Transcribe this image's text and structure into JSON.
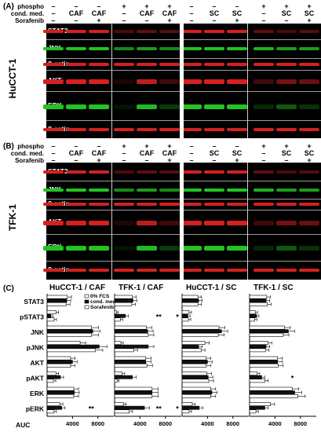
{
  "panels": {
    "A": {
      "letter": "(A)",
      "cell_line": "HuCCT-1"
    },
    "B": {
      "letter": "(B)",
      "cell_line": "TFK-1"
    },
    "C": {
      "letter": "(C)"
    }
  },
  "header_labels": {
    "phospho": "phospho",
    "cond": "cond. med.",
    "sorafenib": "Sorafenib"
  },
  "header_A": {
    "phospho": [
      "–",
      "–",
      "–",
      "+",
      "+",
      "+",
      "–",
      "–",
      "–",
      "+",
      "+",
      "+"
    ],
    "cond": [
      "–",
      "CAF",
      "CAF",
      "–",
      "CAF",
      "CAF",
      "–",
      "SC",
      "SC",
      "–",
      "SC",
      "SC"
    ],
    "sorafenib": [
      "–",
      "–",
      "+",
      "–",
      "–",
      "+",
      "–",
      "–",
      "+",
      "–",
      "–",
      "+"
    ]
  },
  "header_B": {
    "phospho": [
      "–",
      "–",
      "–",
      "+",
      "+",
      "+",
      "–",
      "–",
      "–",
      "+",
      "+",
      "+"
    ],
    "cond": [
      "–",
      "CAF",
      "CAF",
      "–",
      "CAF",
      "CAF",
      "–",
      "SC",
      "SC",
      "–",
      "SC",
      "SC"
    ],
    "sorafenib": [
      "–",
      "–",
      "+",
      "–",
      "–",
      "+",
      "–",
      "–",
      "+",
      "–",
      "–",
      "+"
    ]
  },
  "blot_rows_A": [
    "STAT3",
    "JNK",
    "ß-actin",
    "AKT",
    "ERK",
    "ß-actin"
  ],
  "blot_rows_B": [
    "STAT3",
    "JNK",
    "ß-actin",
    "AKT",
    "ERK",
    "ß-actin"
  ],
  "colors": {
    "green": "#22c422",
    "red": "#d42020",
    "bar_dark": "#111111",
    "bar_light": "#ffffff"
  },
  "chart_data": [
    {
      "type": "bar",
      "title": "HuCCT-1 / CAF",
      "orientation": "horizontal",
      "categories": [
        "STAT3",
        "pSTAT3",
        "JNK",
        "pJNK",
        "AKT",
        "pAKT",
        "ERK",
        "pERK"
      ],
      "xlabel": "AUC",
      "xticks": [
        4000,
        8000
      ],
      "xlim": [
        0,
        10500
      ],
      "legend": {
        "position": "top-right",
        "entries": [
          "0% FCS",
          "cond. med.",
          "Sorafenib"
        ]
      },
      "series": [
        {
          "name": "0% FCS",
          "values": [
            3200,
            1400,
            7000,
            5200,
            3700,
            1400,
            4200,
            2000
          ]
        },
        {
          "name": "cond. med.",
          "values": [
            3100,
            600,
            7200,
            8200,
            4000,
            2100,
            4300,
            2300
          ]
        },
        {
          "name": "Sorafenib",
          "values": [
            3000,
            1100,
            7000,
            7600,
            3700,
            1000,
            4200,
            1100
          ]
        }
      ],
      "significance": [
        {
          "category": "pERK",
          "label": "**"
        }
      ]
    },
    {
      "type": "bar",
      "title": "TFK-1 / CAF",
      "orientation": "horizontal",
      "categories": [
        "STAT3",
        "pSTAT3",
        "JNK",
        "pJNK",
        "AKT",
        "pAKT",
        "ERK",
        "pERK"
      ],
      "xlabel": "",
      "xticks": [
        4000,
        8000
      ],
      "xlim": [
        0,
        10500
      ],
      "series": [
        {
          "name": "0% FCS",
          "values": [
            2800,
            300,
            5000,
            1000,
            4900,
            1200,
            5900,
            1400
          ]
        },
        {
          "name": "cond. med.",
          "values": [
            2900,
            1700,
            5200,
            5300,
            4900,
            2800,
            5900,
            4700
          ]
        },
        {
          "name": "Sorafenib",
          "values": [
            2700,
            900,
            5300,
            3000,
            5100,
            400,
            5900,
            2300
          ]
        }
      ],
      "significance": [
        {
          "category": "pSTAT3",
          "label": "**"
        },
        {
          "category": "pSTAT3",
          "label": "*"
        },
        {
          "category": "pERK",
          "label": "**"
        },
        {
          "category": "pERK",
          "label": "*"
        }
      ]
    },
    {
      "type": "bar",
      "title": "HuCCT-1 / SC",
      "orientation": "horizontal",
      "categories": [
        "STAT3",
        "pSTAT3",
        "JNK",
        "pJNK",
        "AKT",
        "pAKT",
        "ERK",
        "pERK"
      ],
      "xlabel": "",
      "xticks": [
        4000,
        8000
      ],
      "xlim": [
        0,
        10500
      ],
      "series": [
        {
          "name": "0% FCS",
          "values": [
            2500,
            1100,
            5800,
            3600,
            3800,
            3900,
            4500,
            1600
          ]
        },
        {
          "name": "cond. med.",
          "values": [
            2600,
            900,
            6200,
            2600,
            4000,
            4100,
            4700,
            2700
          ]
        },
        {
          "name": "Sorafenib",
          "values": [
            2500,
            1000,
            5700,
            3000,
            3800,
            4200,
            4500,
            1100
          ]
        }
      ]
    },
    {
      "type": "bar",
      "title": "TFK-1 / SC",
      "orientation": "horizontal",
      "categories": [
        "STAT3",
        "pSTAT3",
        "JNK",
        "pJNK",
        "AKT",
        "pAKT",
        "ERK",
        "pERK"
      ],
      "xlabel": "",
      "xticks": [
        4000,
        8000
      ],
      "xlim": [
        0,
        10500
      ],
      "series": [
        {
          "name": "0% FCS",
          "values": [
            2700,
            900,
            5500,
            2900,
            4400,
            1200,
            6700,
            3300
          ]
        },
        {
          "name": "cond. med.",
          "values": [
            2600,
            1100,
            6100,
            2600,
            4400,
            1900,
            7100,
            2400
          ]
        },
        {
          "name": "Sorafenib",
          "values": [
            2800,
            800,
            5300,
            2500,
            4500,
            2400,
            7600,
            1000
          ]
        }
      ],
      "significance": [
        {
          "category": "pAKT",
          "label": "*"
        }
      ]
    }
  ]
}
